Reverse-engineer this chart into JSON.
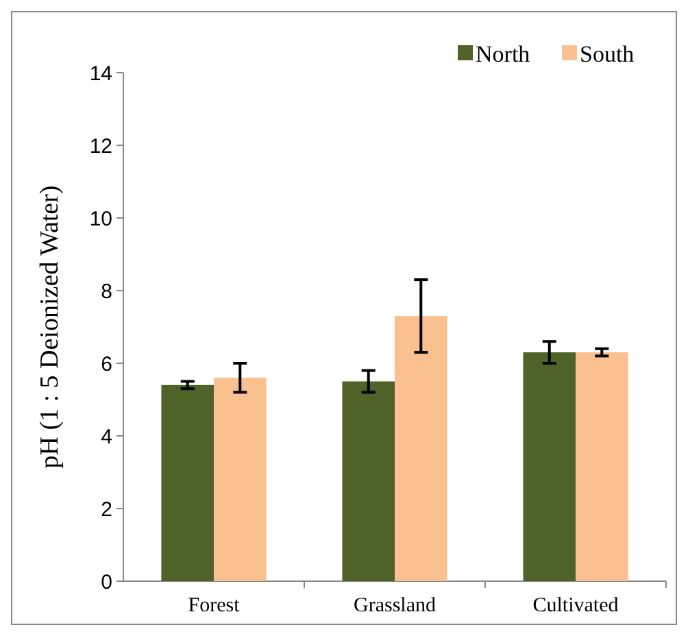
{
  "chart_data": {
    "type": "bar",
    "ylabel": "pH (1 : 5 Deionized Water)",
    "categories": [
      "Forest",
      "Grassland",
      "Cultivated"
    ],
    "series": [
      {
        "name": "North",
        "color": "#4f6228",
        "values": [
          5.4,
          5.5,
          6.3
        ],
        "errors": [
          0.1,
          0.3,
          0.3
        ]
      },
      {
        "name": "South",
        "color": "#fac090",
        "values": [
          5.6,
          7.3,
          6.3
        ],
        "errors": [
          0.4,
          1.0,
          0.1
        ]
      }
    ],
    "ylim": [
      0,
      14
    ],
    "yticks": [
      0,
      2,
      4,
      6,
      8,
      10,
      12,
      14
    ],
    "grid": false,
    "legend": "top right"
  }
}
